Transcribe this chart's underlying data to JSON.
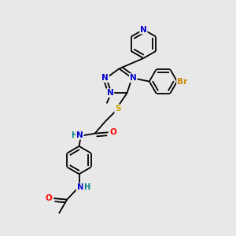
{
  "bg_color": "#e8e8e8",
  "bond_color": "#000000",
  "atom_colors": {
    "N": "#0000cc",
    "O": "#ff0000",
    "S": "#ccaa00",
    "Br": "#cc8800",
    "H": "#008080",
    "C": "#000000"
  },
  "font_size": 7.5,
  "figsize": [
    3.0,
    3.0
  ],
  "dpi": 100,
  "lw": 1.3
}
